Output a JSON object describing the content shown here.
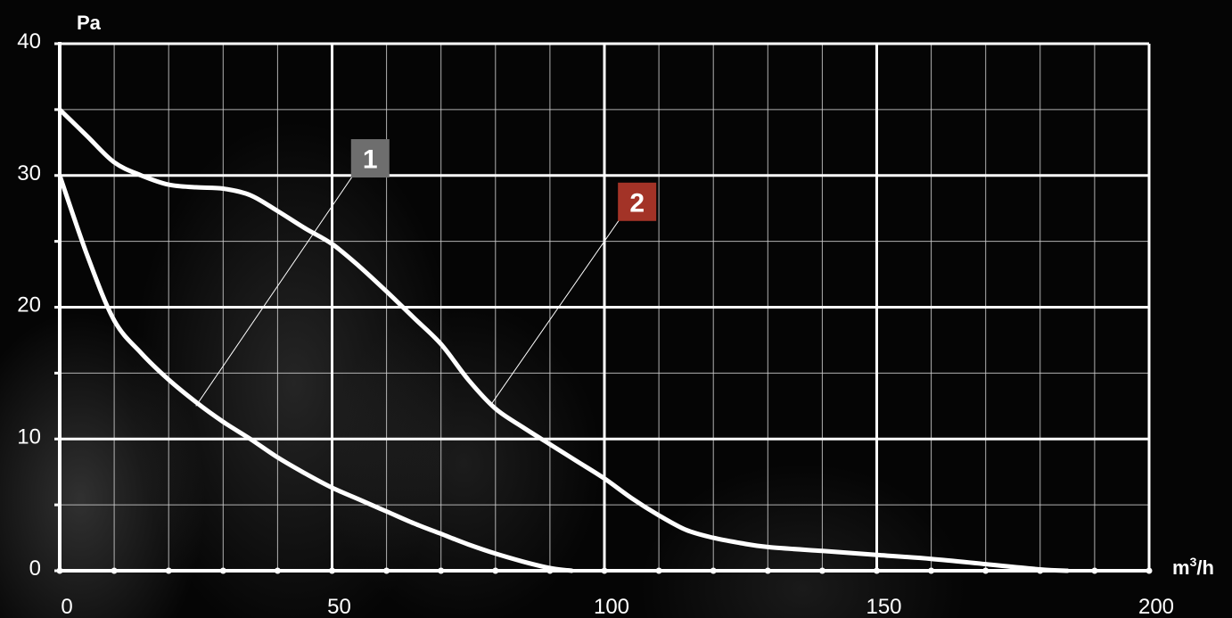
{
  "chart_data": {
    "type": "line",
    "ylabel": "Pa",
    "xlabel_base": "m",
    "xlabel_sup": "3",
    "xlabel_tail": "/h",
    "xlim": [
      0,
      200
    ],
    "ylim": [
      0,
      40
    ],
    "x_ticks": [
      "0",
      "50",
      "100",
      "150",
      "200"
    ],
    "y_ticks": [
      "0",
      "10",
      "20",
      "30",
      "40"
    ],
    "x_tick_values": [
      0,
      50,
      100,
      150,
      200
    ],
    "y_tick_values": [
      0,
      10,
      20,
      30,
      40
    ],
    "x_minor_step": 10,
    "y_minor_step": 5,
    "grid": true,
    "series": [
      {
        "name": "1",
        "color": "#6e6e6e",
        "points": [
          [
            0,
            30
          ],
          [
            5,
            24
          ],
          [
            10,
            19
          ],
          [
            15,
            16.5
          ],
          [
            20,
            14.5
          ],
          [
            25,
            12.8
          ],
          [
            30,
            11.3
          ],
          [
            35,
            10
          ],
          [
            40,
            8.6
          ],
          [
            45,
            7.4
          ],
          [
            50,
            6.3
          ],
          [
            55,
            5.4
          ],
          [
            60,
            4.5
          ],
          [
            65,
            3.6
          ],
          [
            70,
            2.8
          ],
          [
            75,
            2.0
          ],
          [
            80,
            1.3
          ],
          [
            85,
            0.7
          ],
          [
            90,
            0.2
          ],
          [
            94,
            0
          ]
        ]
      },
      {
        "name": "2",
        "color": "#a33327",
        "points": [
          [
            0,
            35
          ],
          [
            5,
            33
          ],
          [
            10,
            31
          ],
          [
            15,
            30
          ],
          [
            20,
            29.3
          ],
          [
            25,
            29.1
          ],
          [
            30,
            29
          ],
          [
            35,
            28.5
          ],
          [
            40,
            27.3
          ],
          [
            45,
            26
          ],
          [
            50,
            24.8
          ],
          [
            55,
            23.1
          ],
          [
            60,
            21.2
          ],
          [
            65,
            19.2
          ],
          [
            70,
            17.2
          ],
          [
            75,
            14.5
          ],
          [
            80,
            12.3
          ],
          [
            85,
            10.9
          ],
          [
            90,
            9.6
          ],
          [
            95,
            8.3
          ],
          [
            100,
            7
          ],
          [
            105,
            5.5
          ],
          [
            110,
            4.2
          ],
          [
            115,
            3.1
          ],
          [
            120,
            2.5
          ],
          [
            125,
            2.1
          ],
          [
            130,
            1.8
          ],
          [
            140,
            1.5
          ],
          [
            150,
            1.2
          ],
          [
            160,
            0.9
          ],
          [
            170,
            0.5
          ],
          [
            180,
            0.1
          ],
          [
            185,
            0
          ]
        ]
      }
    ],
    "callouts": [
      {
        "label": "1",
        "color": "#6e6e6e",
        "anchor": [
          25,
          12.5
        ],
        "box": [
          57,
          31.3
        ]
      },
      {
        "label": "2",
        "color": "#a33327",
        "anchor": [
          79,
          12.5
        ],
        "box": [
          106,
          28
        ]
      }
    ]
  }
}
